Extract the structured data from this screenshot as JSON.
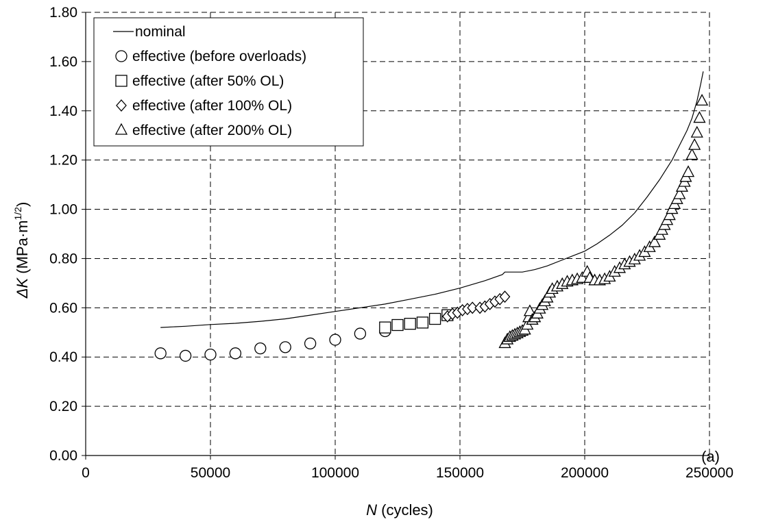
{
  "chart_data": {
    "type": "scatter",
    "xlabel": {
      "symbol": "N",
      "unit": "(cycles)"
    },
    "ylabel": {
      "symbol": "ΔK",
      "unit": "(MPa·m",
      "exp": "1/2",
      "close": ")"
    },
    "xlim": [
      0,
      250000
    ],
    "ylim": [
      0,
      1.8
    ],
    "xticks": [
      0,
      50000,
      100000,
      150000,
      200000,
      250000
    ],
    "yticks": [
      0,
      0.2,
      0.4,
      0.6,
      0.8,
      1.0,
      1.2,
      1.4,
      1.6,
      1.8
    ],
    "xtick_labels": [
      "0",
      "50000",
      "100000",
      "150000",
      "200000",
      "250000"
    ],
    "ytick_labels": [
      "0.00",
      "0.20",
      "0.40",
      "0.60",
      "0.80",
      "1.00",
      "1.20",
      "1.40",
      "1.60",
      "1.80"
    ],
    "grid": "dashed",
    "legend_position": "top-left",
    "annotation": "(a)",
    "series": [
      {
        "name": "nominal",
        "marker": "line",
        "points": [
          [
            30000,
            0.52
          ],
          [
            40000,
            0.525
          ],
          [
            50000,
            0.532
          ],
          [
            60000,
            0.537
          ],
          [
            70000,
            0.545
          ],
          [
            80000,
            0.555
          ],
          [
            90000,
            0.57
          ],
          [
            100000,
            0.585
          ],
          [
            110000,
            0.6
          ],
          [
            120000,
            0.615
          ],
          [
            130000,
            0.635
          ],
          [
            140000,
            0.655
          ],
          [
            150000,
            0.68
          ],
          [
            160000,
            0.71
          ],
          [
            167000,
            0.735
          ],
          [
            168000,
            0.745
          ],
          [
            175000,
            0.745
          ],
          [
            180000,
            0.755
          ],
          [
            185000,
            0.77
          ],
          [
            190000,
            0.79
          ],
          [
            195000,
            0.81
          ],
          [
            200000,
            0.83
          ],
          [
            205000,
            0.86
          ],
          [
            210000,
            0.895
          ],
          [
            215000,
            0.935
          ],
          [
            220000,
            0.985
          ],
          [
            225000,
            1.05
          ],
          [
            230000,
            1.12
          ],
          [
            235000,
            1.2
          ],
          [
            238000,
            1.26
          ],
          [
            241000,
            1.32
          ],
          [
            243000,
            1.37
          ],
          [
            245000,
            1.44
          ],
          [
            246500,
            1.51
          ],
          [
            247500,
            1.56
          ]
        ]
      },
      {
        "name": "effective (before overloads)",
        "marker": "circle",
        "points": [
          [
            30000,
            0.415
          ],
          [
            40000,
            0.405
          ],
          [
            50000,
            0.41
          ],
          [
            60000,
            0.415
          ],
          [
            70000,
            0.435
          ],
          [
            80000,
            0.44
          ],
          [
            90000,
            0.455
          ],
          [
            100000,
            0.47
          ],
          [
            110000,
            0.495
          ],
          [
            120000,
            0.505
          ]
        ]
      },
      {
        "name": "effective (after 50% OL)",
        "marker": "square",
        "points": [
          [
            120000,
            0.52
          ],
          [
            125000,
            0.53
          ],
          [
            130000,
            0.535
          ],
          [
            135000,
            0.54
          ],
          [
            140000,
            0.555
          ],
          [
            145000,
            0.57
          ]
        ]
      },
      {
        "name": "effective (after 100% OL)",
        "marker": "diamond",
        "points": [
          [
            145000,
            0.565
          ],
          [
            147000,
            0.575
          ],
          [
            149000,
            0.58
          ],
          [
            151000,
            0.59
          ],
          [
            153000,
            0.595
          ],
          [
            155000,
            0.6
          ],
          [
            158000,
            0.6
          ],
          [
            160000,
            0.605
          ],
          [
            162000,
            0.615
          ],
          [
            164000,
            0.625
          ],
          [
            166000,
            0.635
          ],
          [
            168000,
            0.645
          ]
        ]
      },
      {
        "name": "effective (after 200% OL)",
        "marker": "triangle",
        "points": [
          [
            168000,
            0.455
          ],
          [
            169000,
            0.47
          ],
          [
            170000,
            0.48
          ],
          [
            171000,
            0.485
          ],
          [
            172000,
            0.49
          ],
          [
            173000,
            0.495
          ],
          [
            174000,
            0.5
          ],
          [
            175000,
            0.505
          ],
          [
            176000,
            0.51
          ],
          [
            177000,
            0.53
          ],
          [
            177500,
            0.56
          ],
          [
            178000,
            0.585
          ],
          [
            179000,
            0.55
          ],
          [
            180000,
            0.56
          ],
          [
            181000,
            0.575
          ],
          [
            182000,
            0.595
          ],
          [
            183000,
            0.61
          ],
          [
            184000,
            0.625
          ],
          [
            185000,
            0.64
          ],
          [
            186000,
            0.66
          ],
          [
            187000,
            0.675
          ],
          [
            189000,
            0.685
          ],
          [
            191000,
            0.695
          ],
          [
            193000,
            0.705
          ],
          [
            195000,
            0.71
          ],
          [
            197000,
            0.715
          ],
          [
            199000,
            0.72
          ],
          [
            201000,
            0.745
          ],
          [
            202000,
            0.72
          ],
          [
            204000,
            0.71
          ],
          [
            206000,
            0.71
          ],
          [
            208000,
            0.715
          ],
          [
            210000,
            0.725
          ],
          [
            212000,
            0.745
          ],
          [
            214000,
            0.76
          ],
          [
            216000,
            0.775
          ],
          [
            218000,
            0.785
          ],
          [
            220000,
            0.795
          ],
          [
            222000,
            0.81
          ],
          [
            224000,
            0.825
          ],
          [
            226000,
            0.845
          ],
          [
            228000,
            0.865
          ],
          [
            230000,
            0.895
          ],
          [
            231000,
            0.915
          ],
          [
            232000,
            0.935
          ],
          [
            233000,
            0.955
          ],
          [
            234000,
            0.975
          ],
          [
            235000,
            1.0
          ],
          [
            236000,
            1.02
          ],
          [
            237000,
            1.04
          ],
          [
            238000,
            1.06
          ],
          [
            239000,
            1.09
          ],
          [
            240000,
            1.11
          ],
          [
            240500,
            1.13
          ],
          [
            241500,
            1.15
          ],
          [
            243000,
            1.22
          ],
          [
            244000,
            1.26
          ],
          [
            245000,
            1.31
          ],
          [
            246000,
            1.37
          ],
          [
            247000,
            1.44
          ]
        ]
      }
    ]
  }
}
